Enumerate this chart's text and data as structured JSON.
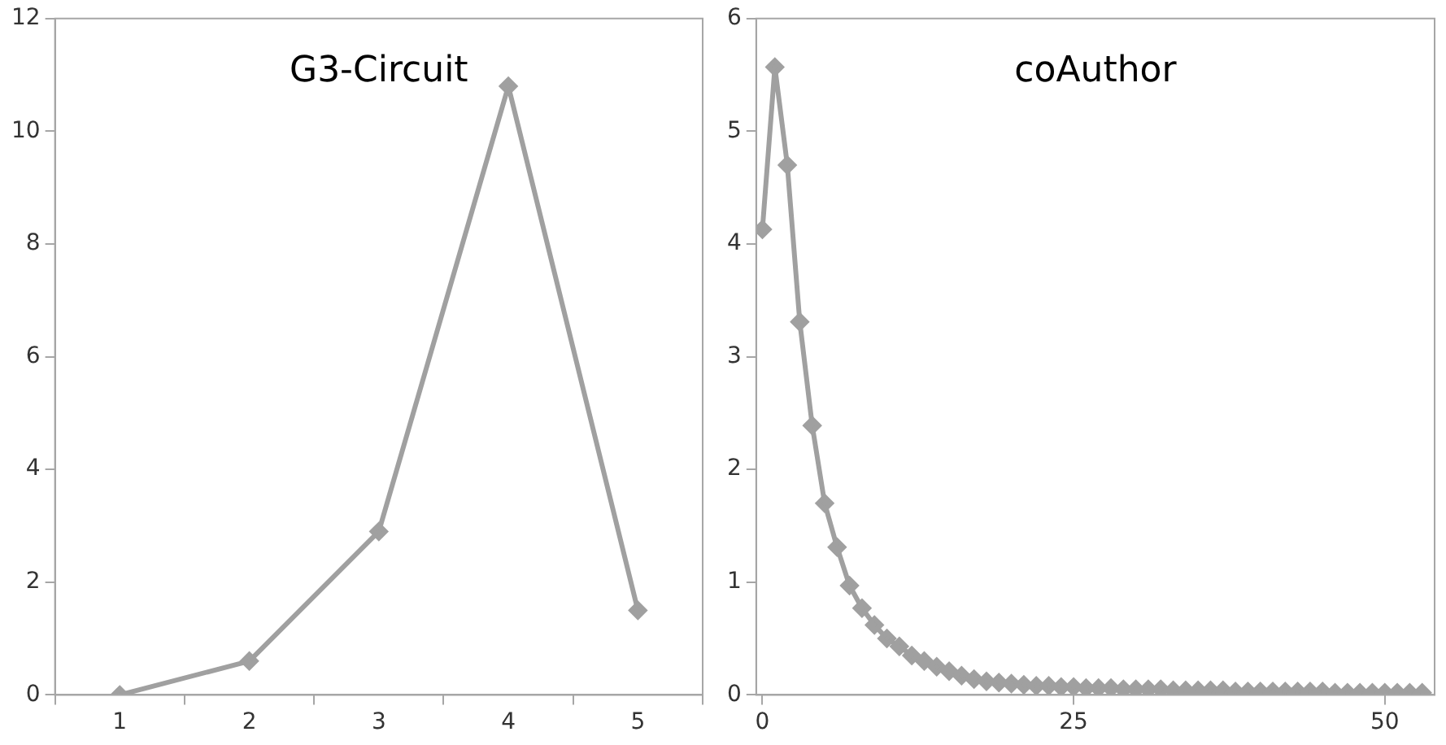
{
  "chart_data": [
    {
      "type": "line",
      "title": "G3-Circuit",
      "categories": [
        "1",
        "2",
        "3",
        "4",
        "5"
      ],
      "series": [
        {
          "color": "#a0a0a0",
          "values": [
            0,
            0.6,
            2.9,
            10.8,
            1.5
          ]
        }
      ],
      "ylim": [
        0,
        12
      ],
      "yticks": [
        0,
        2,
        4,
        6,
        8,
        10,
        12
      ],
      "marker": "diamond"
    },
    {
      "type": "line",
      "title": "coAuthor",
      "x": [
        0,
        1,
        2,
        3,
        4,
        5,
        6,
        7,
        8,
        9,
        10,
        11,
        12,
        13,
        14,
        15,
        16,
        17,
        18,
        19,
        20,
        21,
        22,
        23,
        24,
        25,
        26,
        27,
        28,
        29,
        30,
        31,
        32,
        33,
        34,
        35,
        36,
        37,
        38,
        39,
        40,
        41,
        42,
        43,
        44,
        45,
        46,
        47,
        48,
        49,
        50,
        51,
        52,
        53
      ],
      "series": [
        {
          "color": "#a0a0a0",
          "values": [
            4.13,
            5.57,
            4.7,
            3.31,
            2.39,
            1.7,
            1.31,
            0.97,
            0.77,
            0.62,
            0.5,
            0.43,
            0.35,
            0.3,
            0.25,
            0.21,
            0.17,
            0.14,
            0.12,
            0.11,
            0.1,
            0.09,
            0.08,
            0.08,
            0.07,
            0.07,
            0.06,
            0.06,
            0.06,
            0.05,
            0.05,
            0.05,
            0.05,
            0.04,
            0.04,
            0.04,
            0.04,
            0.04,
            0.03,
            0.03,
            0.03,
            0.03,
            0.03,
            0.03,
            0.03,
            0.03,
            0.02,
            0.02,
            0.02,
            0.02,
            0.02,
            0.02,
            0.02,
            0.02
          ]
        }
      ],
      "xlim": [
        -0.5,
        54
      ],
      "xticks": [
        0,
        25,
        50
      ],
      "ylim": [
        0,
        6
      ],
      "yticks": [
        0,
        1,
        2,
        3,
        4,
        5,
        6
      ],
      "marker": "diamond"
    }
  ]
}
